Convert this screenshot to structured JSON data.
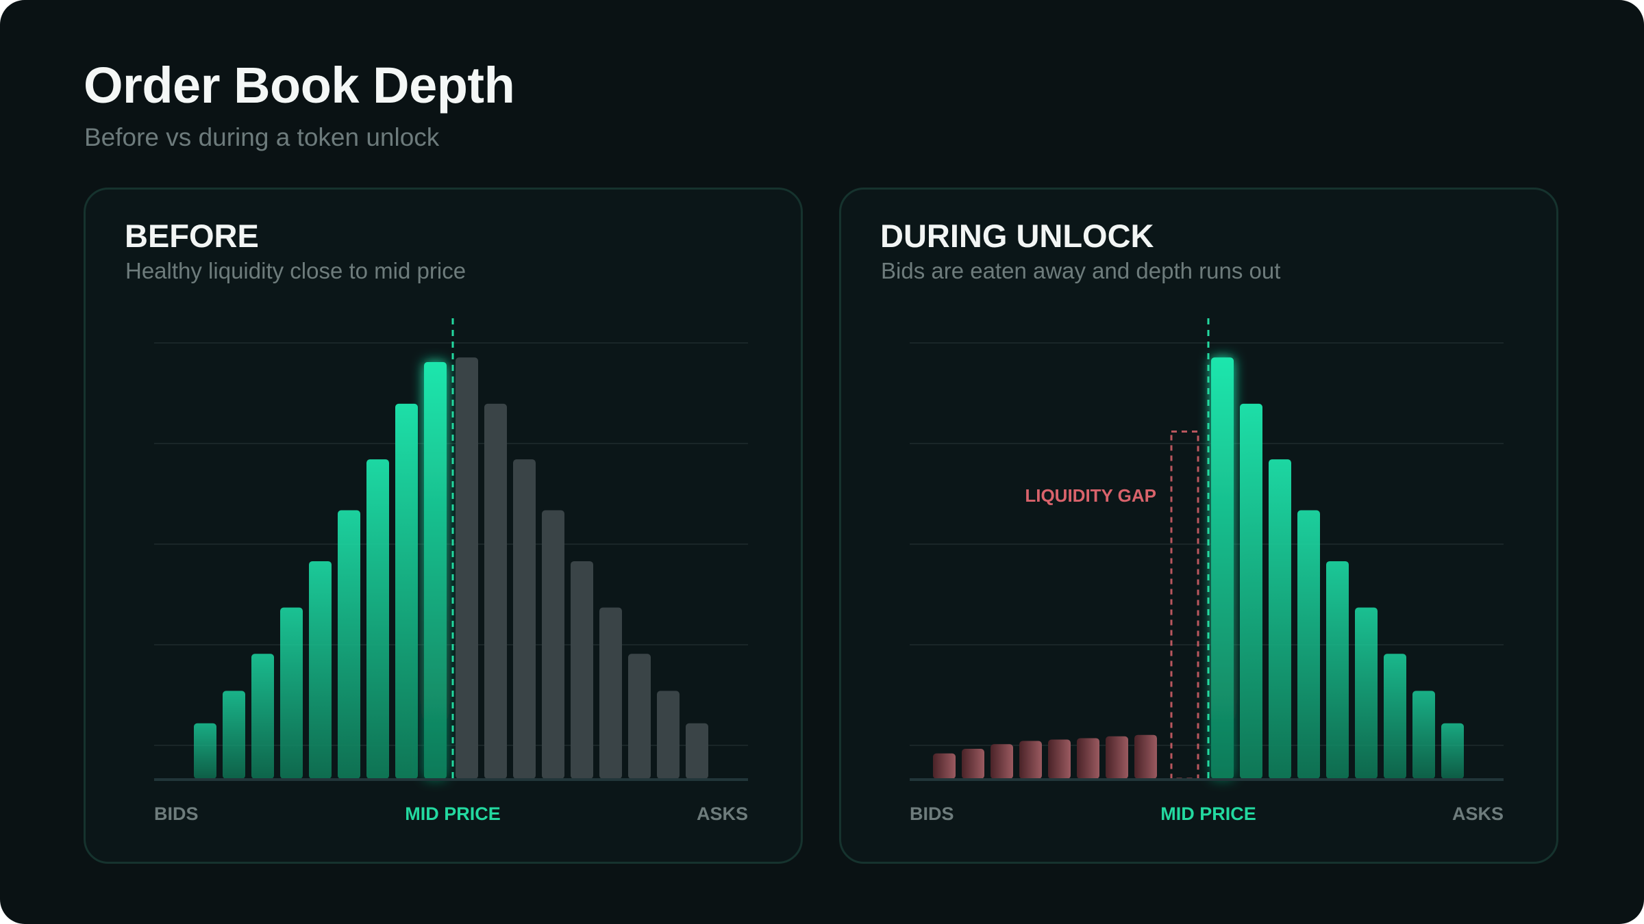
{
  "title": "Order Book Depth",
  "subtitle": "Before vs during a token unlock",
  "colors": {
    "background": "#0a1214",
    "panel": "#0b1618",
    "panel_border": "#16332e",
    "bid_green_top": "#1ee6ad",
    "bid_green_bottom": "#0f7a58",
    "ask_gray": "#3a4447",
    "bid_eroded_red": "#9a5a60",
    "gap_red": "#d9636b",
    "mid_price": "#23d9a0",
    "axis_label": "#6e7c7c"
  },
  "chart_data": [
    {
      "type": "bar",
      "id": "before",
      "title": "BEFORE",
      "subtitle": "Healthy liquidity close to mid price",
      "xlabel_left": "BIDS",
      "xlabel_center": "MID PRICE",
      "xlabel_right": "ASKS",
      "ylim": [
        0,
        9
      ],
      "grid": true,
      "series": [
        {
          "name": "",
          "side": "bid",
          "style": "green",
          "values": [
            1.2,
            1.9,
            2.7,
            3.7,
            4.7,
            5.8,
            6.9,
            8.1,
            9.0
          ]
        },
        {
          "name": "",
          "side": "ask",
          "style": "gray",
          "values": [
            9.1,
            8.1,
            6.9,
            5.8,
            4.7,
            3.7,
            2.7,
            1.9,
            1.2
          ]
        }
      ]
    },
    {
      "type": "bar",
      "id": "during",
      "title": "DURING UNLOCK",
      "subtitle": "Bids are eaten away and depth runs out",
      "xlabel_left": "BIDS",
      "xlabel_center": "MID PRICE",
      "xlabel_right": "ASKS",
      "ylim": [
        0,
        9
      ],
      "grid": true,
      "annotation": "LIQUIDITY GAP",
      "gap_top": 7.5,
      "series": [
        {
          "name": "",
          "side": "bid",
          "style": "red",
          "values": [
            0.55,
            0.65,
            0.75,
            0.82,
            0.85,
            0.88,
            0.92,
            0.95
          ]
        },
        {
          "name": "",
          "side": "ask",
          "style": "green",
          "values": [
            9.1,
            8.1,
            6.9,
            5.8,
            4.7,
            3.7,
            2.7,
            1.9,
            1.2
          ]
        }
      ]
    }
  ]
}
